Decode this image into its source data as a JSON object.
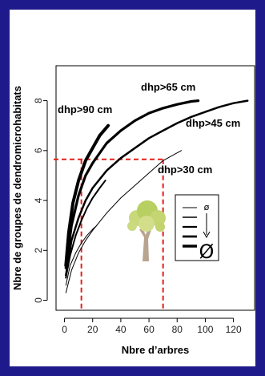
{
  "frame_color": "#1f1a8c",
  "chart_data": {
    "type": "line",
    "xlabel": "Nbre d’arbres",
    "ylabel": "Nbre de groupes de dendromicrohabitats",
    "xlim": [
      -6,
      135
    ],
    "ylim": [
      -0.4,
      9.4
    ],
    "xticks": [
      0,
      20,
      40,
      60,
      80,
      100,
      120
    ],
    "yticks": [
      0,
      2,
      4,
      6,
      8
    ],
    "series": [
      {
        "name": "dhp>30 cm",
        "stroke": 1,
        "x": [
          1,
          5,
          10,
          15,
          20,
          30,
          40,
          50,
          60,
          70,
          83
        ],
        "y": [
          0.3,
          1.2,
          1.9,
          2.4,
          2.8,
          3.5,
          4.1,
          4.6,
          5.1,
          5.6,
          6.0
        ]
      },
      {
        "name": "",
        "stroke": 1,
        "x": [
          1,
          4,
          8,
          12,
          16,
          20,
          23
        ],
        "y": [
          0.6,
          1.4,
          1.9,
          2.3,
          2.6,
          2.85,
          3.0
        ]
      },
      {
        "name": "",
        "stroke": 2,
        "x": [
          1,
          4,
          8,
          12,
          16,
          20,
          25,
          29
        ],
        "y": [
          0.9,
          1.8,
          2.6,
          3.2,
          3.7,
          4.1,
          4.5,
          4.8
        ]
      },
      {
        "name": "dhp>45 cm",
        "stroke": 2.5,
        "x": [
          1,
          5,
          10,
          15,
          20,
          30,
          40,
          50,
          60,
          70,
          80,
          90,
          100,
          110,
          120,
          130
        ],
        "y": [
          1.0,
          2.4,
          3.3,
          4.0,
          4.5,
          5.2,
          5.7,
          6.1,
          6.5,
          6.8,
          7.1,
          7.35,
          7.55,
          7.75,
          7.9,
          8.0
        ]
      },
      {
        "name": "dhp>65 cm",
        "stroke": 3.2,
        "x": [
          1,
          5,
          10,
          15,
          20,
          30,
          40,
          50,
          60,
          70,
          80,
          90,
          95
        ],
        "y": [
          1.3,
          3.0,
          4.2,
          5.0,
          5.5,
          6.3,
          6.8,
          7.2,
          7.5,
          7.7,
          7.85,
          7.97,
          8.0
        ]
      },
      {
        "name": "dhp>90 cm",
        "stroke": 4,
        "x": [
          1,
          3,
          6,
          10,
          15,
          20,
          25,
          31
        ],
        "y": [
          1.4,
          2.7,
          3.9,
          4.8,
          5.6,
          6.1,
          6.6,
          7.0
        ]
      }
    ],
    "reference_lines": {
      "y": 5.65,
      "x": [
        12,
        70
      ],
      "color": "#e0201c"
    },
    "legend": {
      "title": "ø",
      "symbol": "Ø",
      "stroke_widths": [
        1,
        1.6,
        2.2,
        2.8,
        3.5
      ]
    }
  }
}
